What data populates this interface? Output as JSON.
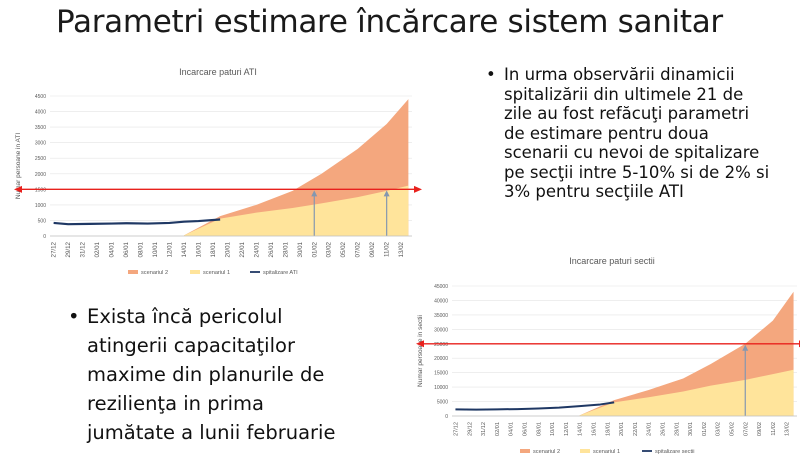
{
  "slide": {
    "title": "Parametri estimare încărcare sistem sanitar",
    "bullet_right": "In urma observării dinamicii\nspitalizării din ultimele 21 de\nzile au fost refăcuţi parametri\nde estimare pentru doua\nscenarii cu nevoi de spitalizare\npe secţii intre 5-10% si de 2% si\n3% pentru secţiile ATI",
    "bullet_left": "Exista încă pericolul\natingerii capacitaţilor\nmaxime din planurile de\nrezilienţa in prima\njumătate a lunii februarie"
  },
  "colors": {
    "scenario2": "#f4a77e",
    "scenario1": "#ffe49b",
    "hospitalizations": "#1f3864",
    "capacity_line": "#e8211d",
    "marker_arrow": "#8497b0"
  },
  "chart_data": [
    {
      "type": "area",
      "title": "Incarcare paturi ATI",
      "ylabel": "Numar persoane in ATI",
      "xlabel": "",
      "ylim": [
        0,
        4500
      ],
      "yticks": [
        "0",
        "500",
        "1000",
        "1500",
        "2000",
        "2500",
        "3000",
        "3500",
        "4000",
        "4500"
      ],
      "x_labels": [
        "27/12",
        "29/12",
        "31/12",
        "02/01",
        "04/01",
        "06/01",
        "08/01",
        "10/01",
        "12/01",
        "14/01",
        "16/01",
        "18/01",
        "20/01",
        "22/01",
        "24/01",
        "26/01",
        "28/01",
        "30/01",
        "01/02",
        "03/02",
        "05/02",
        "07/02",
        "09/02",
        "11/02",
        "13/02"
      ],
      "capacity_line": 1500,
      "markers_x": [
        "01/02",
        "11/02"
      ],
      "legend": [
        "scenariul 2",
        "scenariul 1",
        "spitalizare ATI"
      ],
      "legend_position": "bottom",
      "grid": true,
      "series": [
        {
          "name": "scenariul 2",
          "x": [
            "14/01",
            "19/01",
            "24/01",
            "29/01",
            "02/02",
            "07/02",
            "11/02",
            "14/02"
          ],
          "values": [
            20,
            640,
            1000,
            1450,
            2000,
            2800,
            3600,
            4400
          ]
        },
        {
          "name": "scenariul 1",
          "x": [
            "14/01",
            "19/01",
            "24/01",
            "29/01",
            "02/02",
            "07/02",
            "11/02",
            "14/02"
          ],
          "values": [
            20,
            560,
            750,
            900,
            1050,
            1250,
            1450,
            1620
          ]
        },
        {
          "name": "spitalizare ATI",
          "x": [
            "27/12",
            "29/12",
            "01/01",
            "04/01",
            "06/01",
            "09/01",
            "12/01",
            "14/01",
            "16/01",
            "19/01"
          ],
          "values": [
            420,
            380,
            390,
            400,
            410,
            400,
            420,
            460,
            480,
            530
          ]
        }
      ]
    },
    {
      "type": "area",
      "title": "Incarcare paturi sectii",
      "ylabel": "Numar persoane in sectii",
      "xlabel": "",
      "ylim": [
        0,
        45000
      ],
      "yticks": [
        "0",
        "5000",
        "10000",
        "15000",
        "20000",
        "25000",
        "30000",
        "35000",
        "40000",
        "45000"
      ],
      "x_labels": [
        "27/12",
        "29/12",
        "31/12",
        "02/01",
        "04/01",
        "06/01",
        "08/01",
        "10/01",
        "12/01",
        "14/01",
        "16/01",
        "18/01",
        "20/01",
        "22/01",
        "24/01",
        "26/01",
        "28/01",
        "30/01",
        "01/02",
        "03/02",
        "05/02",
        "07/02",
        "09/02",
        "11/02",
        "13/02"
      ],
      "capacity_line": 25000,
      "markers_x": [
        "07/02"
      ],
      "legend": [
        "scenariul 2",
        "scenariul 1",
        "spitalizare sectii"
      ],
      "legend_position": "bottom",
      "grid": true,
      "series": [
        {
          "name": "scenariul 2",
          "x": [
            "14/01",
            "19/01",
            "24/01",
            "29/01",
            "02/02",
            "07/02",
            "11/02",
            "14/02"
          ],
          "values": [
            200,
            5500,
            9000,
            13000,
            18000,
            25000,
            33000,
            43000
          ]
        },
        {
          "name": "scenariul 1",
          "x": [
            "14/01",
            "19/01",
            "24/01",
            "29/01",
            "02/02",
            "07/02",
            "11/02",
            "14/02"
          ],
          "values": [
            200,
            4700,
            6500,
            8500,
            10500,
            12500,
            14500,
            16000
          ]
        },
        {
          "name": "spitalizare sectii",
          "x": [
            "27/12",
            "30/12",
            "02/01",
            "05/01",
            "08/01",
            "11/01",
            "14/01",
            "17/01",
            "19/01"
          ],
          "values": [
            2300,
            2200,
            2300,
            2400,
            2600,
            2900,
            3400,
            4000,
            4700
          ]
        }
      ]
    }
  ]
}
